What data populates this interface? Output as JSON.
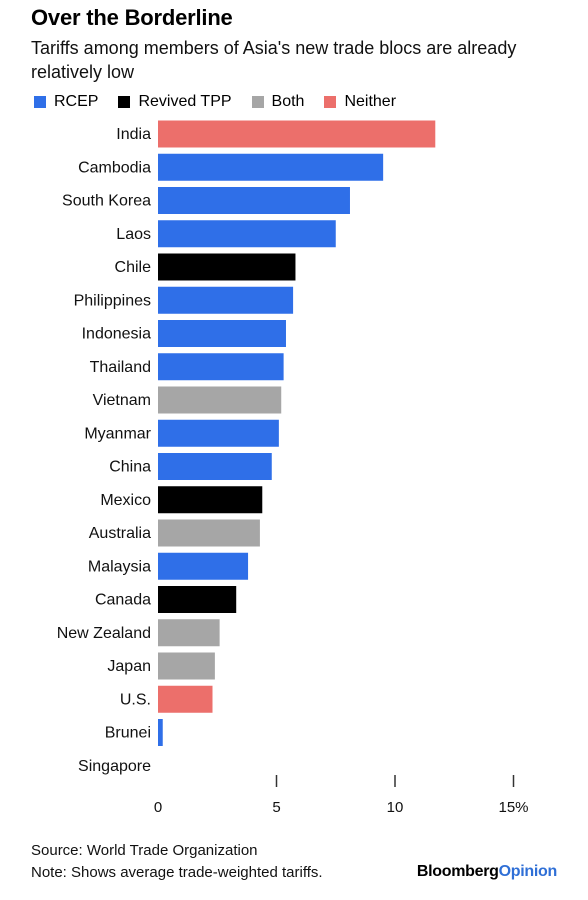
{
  "title": "Over the Borderline",
  "subtitle": "Tariffs among members of Asia's new trade blocs are already relatively low",
  "legend": [
    {
      "label": "RCEP",
      "color": "#2f6fe8"
    },
    {
      "label": "Revived TPP",
      "color": "#000000"
    },
    {
      "label": "Both",
      "color": "#a6a6a6"
    },
    {
      "label": "Neither",
      "color": "#ec6f6b"
    }
  ],
  "chart_data": {
    "type": "bar",
    "orientation": "horizontal",
    "categories": [
      "India",
      "Cambodia",
      "South Korea",
      "Laos",
      "Chile",
      "Philippines",
      "Indonesia",
      "Thailand",
      "Vietnam",
      "Myanmar",
      "China",
      "Mexico",
      "Australia",
      "Malaysia",
      "Canada",
      "New Zealand",
      "Japan",
      "U.S.",
      "Brunei",
      "Singapore"
    ],
    "values": [
      11.7,
      9.5,
      8.1,
      7.5,
      5.8,
      5.7,
      5.4,
      5.3,
      5.2,
      5.1,
      4.8,
      4.4,
      4.3,
      3.8,
      3.3,
      2.6,
      2.4,
      2.3,
      0.2,
      0.0
    ],
    "groups": [
      "Neither",
      "RCEP",
      "RCEP",
      "RCEP",
      "Revived TPP",
      "RCEP",
      "RCEP",
      "RCEP",
      "Both",
      "RCEP",
      "RCEP",
      "Revived TPP",
      "Both",
      "RCEP",
      "Revived TPP",
      "Both",
      "Both",
      "Neither",
      "RCEP",
      "Both"
    ],
    "x_ticks": [
      "0",
      "5",
      "10",
      "15%"
    ],
    "xlim": [
      0,
      15
    ],
    "grid": false
  },
  "footer": {
    "source": "Source: World Trade Organization",
    "note": "Note: Shows average trade-weighted tariffs."
  },
  "brand": {
    "part1": "Bloomberg",
    "part2": "Opinion"
  }
}
